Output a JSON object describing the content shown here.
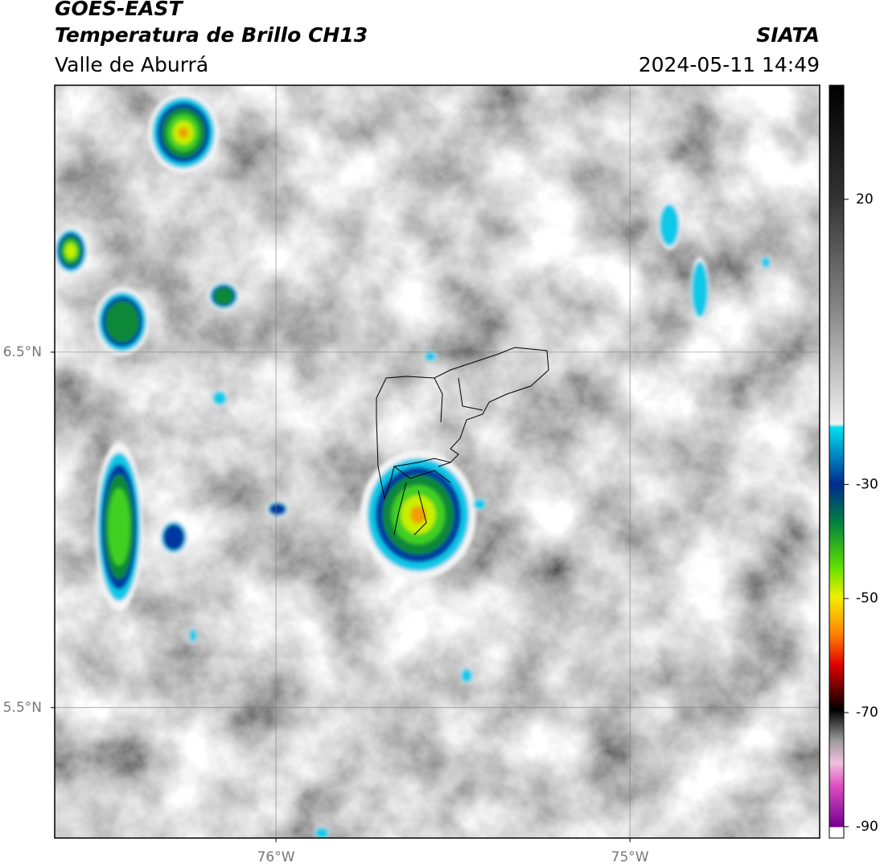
{
  "header": {
    "source": "GOES-EAST",
    "title": "Temperatura de Brillo CH13",
    "brand": "SIATA",
    "region": "Valle de Aburrá",
    "datetime": "2024-05-11 14:49"
  },
  "map": {
    "xlim": [
      -76.625,
      -74.464
    ],
    "ylim": [
      5.133,
      7.251
    ],
    "xticks": [
      {
        "value": -76,
        "label": "76°W"
      },
      {
        "value": -75,
        "label": "75°W"
      }
    ],
    "yticks": [
      {
        "value": 6.5,
        "label": "6.5°N"
      },
      {
        "value": 5.5,
        "label": "5.5°N"
      }
    ],
    "grid": true
  },
  "colorbar": {
    "lim": [
      -92,
      40
    ],
    "ticks": [
      20,
      -30,
      -50,
      -70,
      -90
    ]
  }
}
